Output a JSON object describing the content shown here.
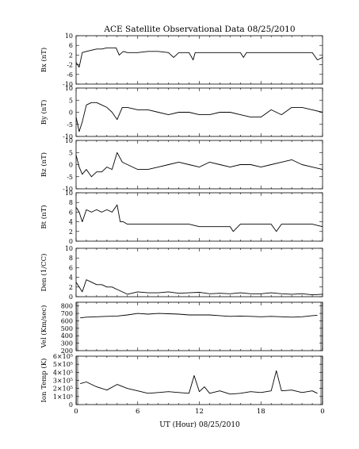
{
  "figure": {
    "title": "ACE Satellite Observational Data   08/25/2010",
    "xlabel": "UT (Hour)   08/25/2010",
    "x_tick_labels": [
      "0",
      "6",
      "12",
      "18",
      "0"
    ]
  },
  "chart_data": [
    {
      "type": "line",
      "ylabel": "Bx (nT)",
      "ylim": [
        -10,
        10
      ],
      "yticks": [
        10,
        6,
        2,
        -2,
        -6,
        -10
      ],
      "ytick_labels": [
        "10",
        "6",
        "2",
        "-2",
        "-6",
        "-10"
      ],
      "xlim": [
        0,
        24
      ],
      "series": [
        {
          "x": [
            0,
            0.3,
            0.6,
            1,
            1.5,
            2,
            2.5,
            3,
            3.5,
            3.9,
            4.2,
            4.6,
            5,
            6,
            7,
            8,
            9,
            9.5,
            10,
            11,
            11.4,
            11.6,
            12,
            13,
            14,
            15,
            16,
            16.3,
            16.6,
            17,
            18,
            19,
            20,
            21,
            22,
            23,
            23.5,
            24
          ],
          "y": [
            -1,
            -3,
            3,
            3.5,
            4,
            4.5,
            4.5,
            5,
            5,
            5,
            2,
            3.5,
            3,
            3,
            3.5,
            3.5,
            3,
            1,
            3,
            3,
            0,
            3,
            3,
            3,
            3,
            3,
            3,
            1,
            3,
            3,
            3,
            3,
            3,
            3,
            3,
            3,
            0,
            1
          ]
        }
      ]
    },
    {
      "type": "line",
      "ylabel": "By (nT)",
      "ylim": [
        -10,
        10
      ],
      "yticks": [
        10,
        5,
        0,
        -5,
        -10
      ],
      "ytick_labels": [
        "10",
        "5",
        "0",
        "-5",
        "-10"
      ],
      "xlim": [
        0,
        24
      ],
      "series": [
        {
          "x": [
            0,
            0.3,
            0.6,
            1,
            1.5,
            2,
            2.5,
            3,
            3.5,
            4,
            4.5,
            5,
            6,
            7,
            8,
            9,
            10,
            11,
            12,
            13,
            14,
            15,
            16,
            17,
            18,
            19,
            20,
            21,
            22,
            23,
            24
          ],
          "y": [
            -2,
            -8,
            -4,
            3,
            4,
            4,
            3,
            2,
            0,
            -3,
            2,
            2,
            1,
            1,
            0,
            -1,
            0,
            0,
            -1,
            -1,
            0,
            0,
            -1,
            -2,
            -2,
            1,
            -1,
            2,
            2,
            1,
            0
          ]
        }
      ]
    },
    {
      "type": "line",
      "ylabel": "Bz (nT)",
      "ylim": [
        -10,
        10
      ],
      "yticks": [
        10,
        5,
        0,
        -5,
        -10
      ],
      "ytick_labels": [
        "10",
        "5",
        "0",
        "-5",
        "-10"
      ],
      "xlim": [
        0,
        24
      ],
      "series": [
        {
          "x": [
            0,
            0.3,
            0.6,
            1,
            1.5,
            2,
            2.5,
            3,
            3.5,
            4,
            4.5,
            5,
            6,
            7,
            8,
            9,
            10,
            11,
            12,
            13,
            14,
            15,
            16,
            17,
            18,
            19,
            20,
            21,
            22,
            23,
            24
          ],
          "y": [
            4,
            -1,
            -4,
            -2,
            -5,
            -3,
            -3,
            -1,
            -2,
            5,
            1,
            0,
            -2,
            -2,
            -1,
            0,
            1,
            0,
            -1,
            1,
            0,
            -1,
            0,
            0,
            -1,
            0,
            1,
            2,
            0,
            -1,
            -2
          ]
        }
      ]
    },
    {
      "type": "line",
      "ylabel": "Bt (nT)",
      "ylim": [
        0,
        10
      ],
      "yticks": [
        10,
        8,
        6,
        4,
        2,
        0
      ],
      "ytick_labels": [
        "10",
        "8",
        "6",
        "4",
        "2",
        "0"
      ],
      "xlim": [
        0,
        24
      ],
      "series": [
        {
          "x": [
            0,
            0.3,
            0.6,
            1,
            1.5,
            2,
            2.5,
            3,
            3.5,
            4,
            4.3,
            4.6,
            5,
            6,
            7,
            8,
            9,
            10,
            11,
            12,
            13,
            14,
            15,
            15.3,
            16,
            17,
            18,
            19,
            19.5,
            20,
            21,
            22,
            23,
            24
          ],
          "y": [
            7,
            6,
            4,
            6.5,
            6,
            6.5,
            6,
            6.5,
            6,
            7.5,
            4,
            4,
            3.5,
            3.5,
            3.5,
            3.5,
            3.5,
            3.5,
            3.5,
            3,
            3,
            3,
            3,
            2,
            3.5,
            3.5,
            3.5,
            3.5,
            2,
            3.5,
            3.5,
            3.5,
            3.5,
            3
          ]
        }
      ]
    },
    {
      "type": "line",
      "ylabel": "Den (1/CC)",
      "ylim": [
        0,
        10
      ],
      "yticks": [
        10,
        8,
        6,
        4,
        2,
        0
      ],
      "ytick_labels": [
        "10",
        "8",
        "6",
        "4",
        "2",
        "0"
      ],
      "xlim": [
        0,
        24
      ],
      "series": [
        {
          "x": [
            0,
            0.3,
            0.6,
            1,
            1.5,
            2,
            2.5,
            3,
            3.5,
            4,
            4.5,
            5,
            6,
            7,
            8,
            9,
            10,
            11,
            12,
            13,
            14,
            15,
            16,
            17,
            18,
            19,
            20,
            21,
            22,
            23,
            24
          ],
          "y": [
            3,
            2,
            1,
            3.5,
            3,
            2.5,
            2.5,
            2,
            2,
            1.5,
            1,
            0.5,
            1,
            0.8,
            0.8,
            1,
            0.7,
            0.8,
            0.9,
            0.6,
            0.7,
            0.6,
            0.8,
            0.6,
            0.6,
            0.8,
            0.6,
            0.5,
            0.6,
            0.4,
            0.5
          ]
        }
      ]
    },
    {
      "type": "line",
      "ylabel": "Vel (Km/sec)",
      "ylim": [
        200,
        850
      ],
      "yticks": [
        800,
        700,
        600,
        500,
        400,
        300,
        200
      ],
      "ytick_labels": [
        "800",
        "700",
        "600",
        "500",
        "400",
        "300",
        "200"
      ],
      "xlim": [
        0,
        24
      ],
      "series": [
        {
          "x": [
            0.4,
            1,
            2,
            3,
            4,
            5,
            6,
            7,
            8,
            9,
            10,
            11,
            12,
            13,
            14,
            15,
            16,
            17,
            18,
            19,
            20,
            21,
            22,
            23,
            23.5
          ],
          "y": [
            640,
            650,
            655,
            660,
            665,
            680,
            700,
            690,
            700,
            695,
            690,
            680,
            680,
            680,
            670,
            660,
            665,
            660,
            655,
            660,
            655,
            650,
            655,
            670,
            675
          ]
        }
      ]
    },
    {
      "type": "line",
      "ylabel": "Ion Temp (K)",
      "ylim": [
        0,
        600000
      ],
      "yticks": [
        600000,
        500000,
        400000,
        300000,
        200000,
        100000,
        0
      ],
      "ytick_labels": [
        "6×10⁵",
        "5×10⁵",
        "4×10⁵",
        "3×10⁵",
        "2×10⁵",
        "1×10⁵",
        "0"
      ],
      "xlim": [
        0,
        24
      ],
      "series": [
        {
          "x": [
            0.4,
            1,
            2,
            3,
            4,
            5,
            6,
            7,
            8,
            9,
            10,
            11,
            11.5,
            12,
            12.5,
            13,
            14,
            15,
            16,
            17,
            18,
            19,
            19.5,
            20,
            21,
            22,
            23,
            23.5
          ],
          "y": [
            260000,
            280000,
            220000,
            180000,
            250000,
            200000,
            170000,
            140000,
            150000,
            160000,
            150000,
            140000,
            360000,
            160000,
            220000,
            140000,
            170000,
            130000,
            140000,
            160000,
            150000,
            170000,
            420000,
            170000,
            180000,
            150000,
            170000,
            140000
          ]
        }
      ]
    }
  ]
}
